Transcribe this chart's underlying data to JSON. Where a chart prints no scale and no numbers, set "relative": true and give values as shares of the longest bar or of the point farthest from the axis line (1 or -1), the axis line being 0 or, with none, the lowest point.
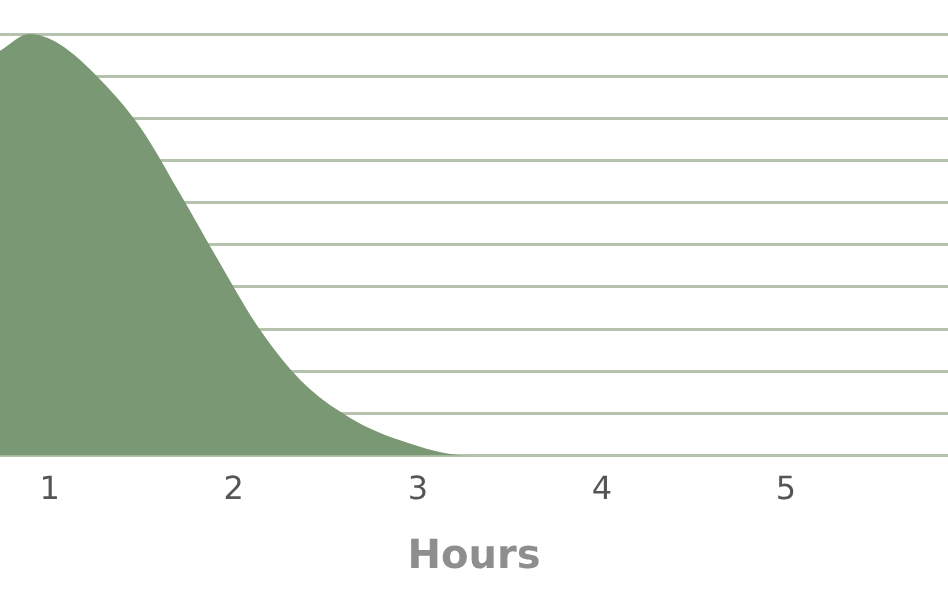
{
  "chart_data": {
    "type": "area",
    "xlabel": "Hours",
    "relative": true,
    "x": [
      0.73,
      0.89,
      1.05,
      1.27,
      1.49,
      1.71,
      1.92,
      2.14,
      2.36,
      2.63,
      2.9,
      3.28,
      4,
      5,
      5.88
    ],
    "series": [
      {
        "color": "#7a9873",
        "values": [
          0.96,
          1,
          0.977,
          0.894,
          0.78,
          0.62,
          0.46,
          0.3,
          0.18,
          0.09,
          0.037,
          0,
          0,
          0,
          0
        ]
      }
    ],
    "xlim": [
      0.73,
      5.88
    ],
    "xticks": [
      1,
      2,
      3,
      4,
      5
    ],
    "grid": "y",
    "legend": false
  }
}
